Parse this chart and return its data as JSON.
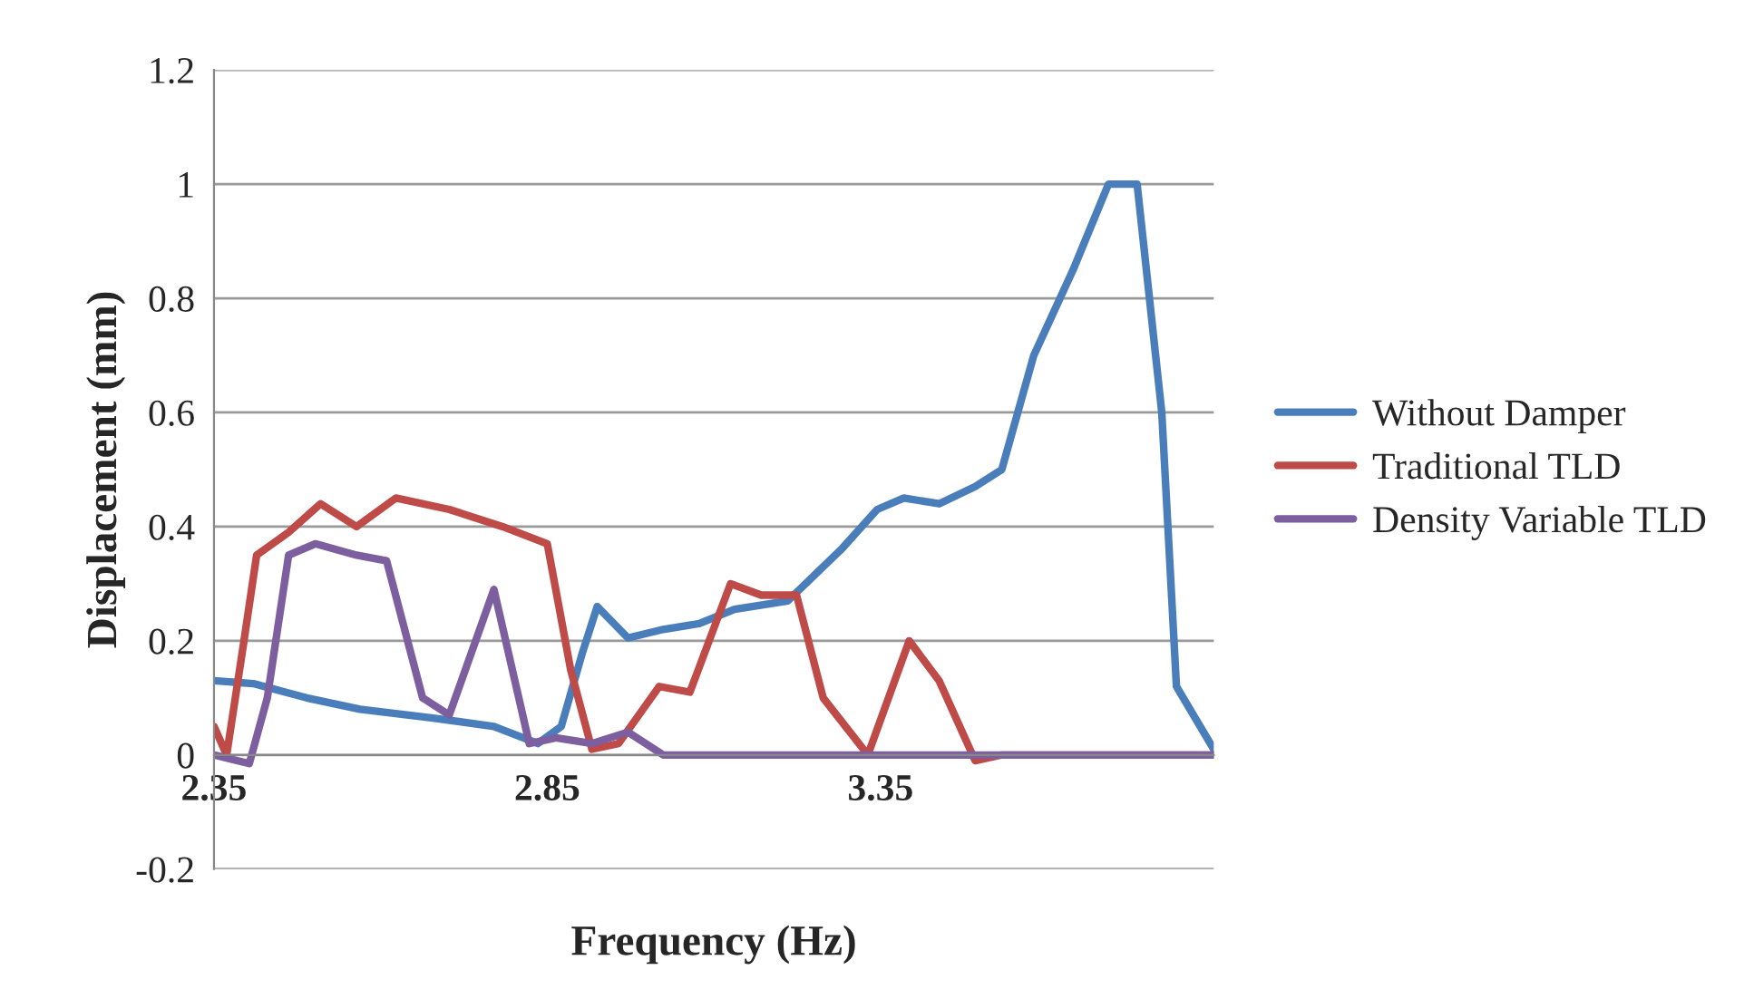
{
  "chart_data": {
    "type": "line",
    "xlabel": "Frequency (Hz)",
    "ylabel": "Displacement (mm)",
    "xlim": [
      2.35,
      3.85
    ],
    "xticks": [
      2.35,
      2.85,
      3.35
    ],
    "ylim": [
      -0.2,
      1.2
    ],
    "yticks": [
      -0.2,
      0,
      0.2,
      0.4,
      0.6,
      0.8,
      1,
      1.2
    ],
    "grid": "y",
    "legend": "right",
    "line_style": "solid",
    "marker": "none",
    "series": [
      {
        "name": "Without Damper",
        "color": "#4a7ebb",
        "x": [
          2.35,
          2.409,
          2.489,
          2.569,
          2.676,
          2.77,
          2.836,
          2.871,
          2.903,
          2.925,
          2.971,
          3.024,
          3.078,
          3.131,
          3.211,
          3.291,
          3.345,
          3.385,
          3.438,
          3.492,
          3.532,
          3.58,
          3.639,
          3.692,
          3.735,
          3.772,
          3.794,
          3.85
        ],
        "values": [
          0.13,
          0.125,
          0.1,
          0.08,
          0.065,
          0.05,
          0.02,
          0.05,
          0.18,
          0.26,
          0.205,
          0.22,
          0.23,
          0.255,
          0.27,
          0.36,
          0.43,
          0.45,
          0.44,
          0.47,
          0.5,
          0.7,
          0.85,
          1.0,
          1.0,
          0.6,
          0.12,
          0.01
        ]
      },
      {
        "name": "Traditional TLD",
        "color": "#be4b48",
        "x": [
          2.35,
          2.369,
          2.395,
          2.414,
          2.462,
          2.51,
          2.564,
          2.623,
          2.703,
          2.783,
          2.85,
          2.885,
          2.917,
          2.957,
          3.018,
          3.064,
          3.125,
          3.171,
          3.224,
          3.264,
          3.331,
          3.393,
          3.438,
          3.492,
          3.532,
          3.85
        ],
        "values": [
          0.05,
          0.0,
          0.2,
          0.35,
          0.39,
          0.44,
          0.4,
          0.45,
          0.43,
          0.4,
          0.37,
          0.15,
          0.01,
          0.02,
          0.12,
          0.11,
          0.3,
          0.28,
          0.28,
          0.1,
          0.0,
          0.2,
          0.13,
          -0.01,
          0.0,
          0.0
        ]
      },
      {
        "name": "Density Variable TLD",
        "color": "#7d5fa0",
        "x": [
          2.35,
          2.403,
          2.43,
          2.462,
          2.502,
          2.564,
          2.609,
          2.663,
          2.703,
          2.77,
          2.823,
          2.863,
          2.917,
          2.971,
          3.024,
          3.85
        ],
        "values": [
          0.0,
          -0.015,
          0.1,
          0.35,
          0.37,
          0.35,
          0.34,
          0.1,
          0.07,
          0.29,
          0.02,
          0.03,
          0.02,
          0.04,
          0.0,
          0.0
        ]
      }
    ]
  }
}
